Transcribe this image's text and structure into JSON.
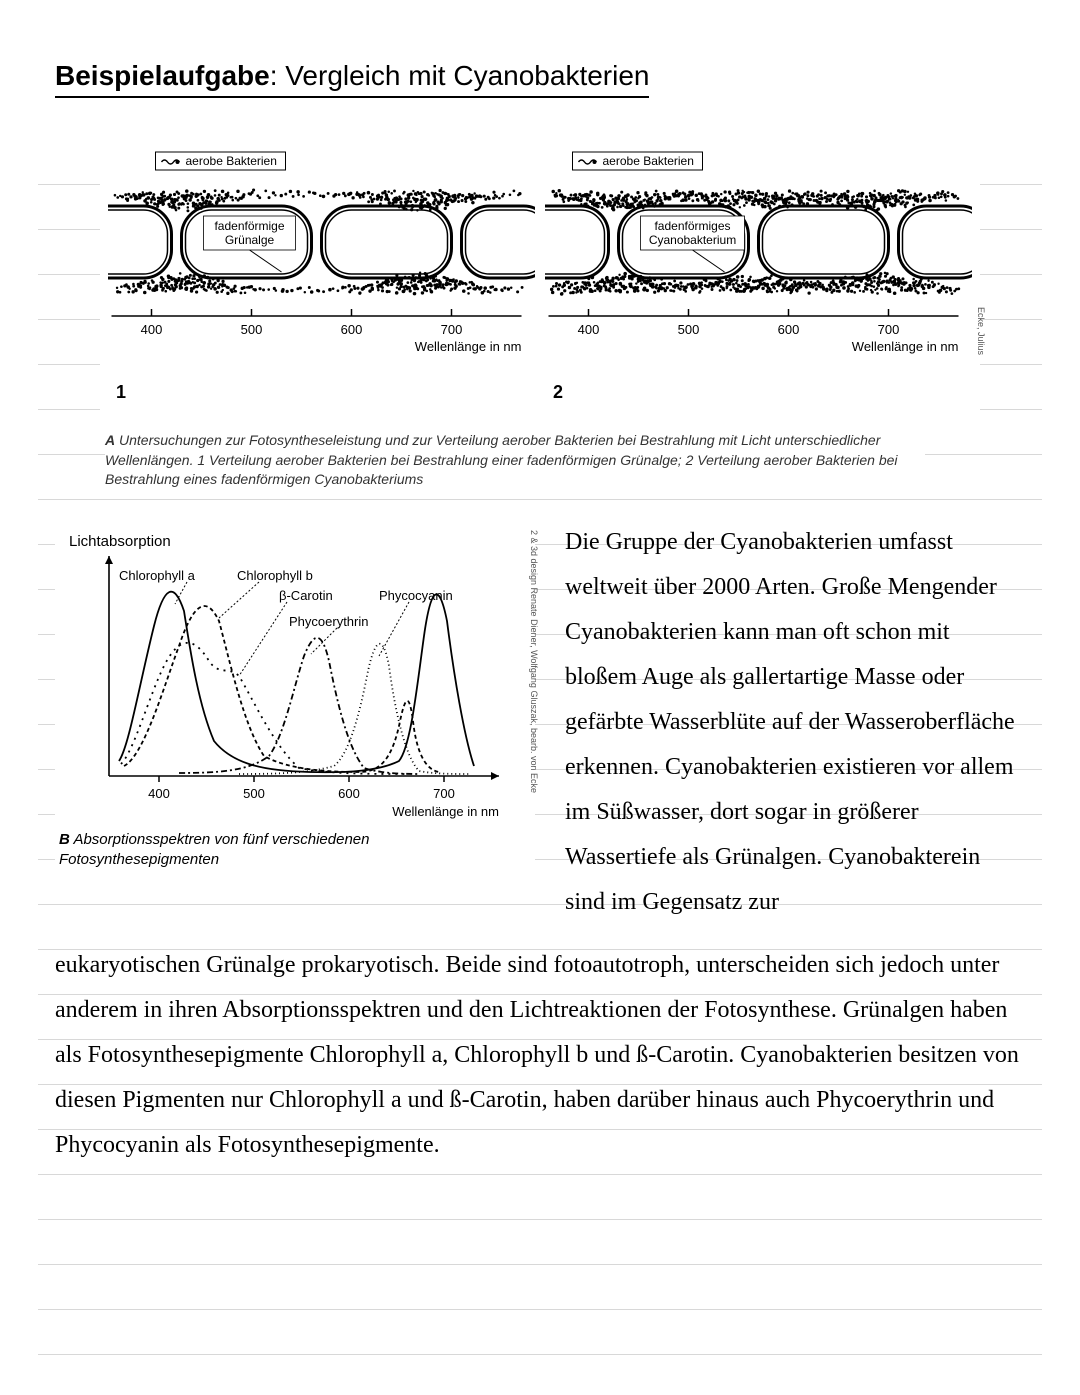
{
  "title_prefix": "Beispielaufgabe",
  "title_rest": ": Vergleich mit Cyanobakterien",
  "figA": {
    "legend_label": "aerobe Bakterien",
    "center_label_1_line1": "fadenförmige",
    "center_label_1_line2": "Grünalge",
    "center_label_2_line1": "fadenförmiges",
    "center_label_2_line2": "Cyanobakterium",
    "x_axis_label": "Wellenlänge in nm",
    "x_ticks": [
      "400",
      "500",
      "600",
      "700"
    ],
    "panel1_num": "1",
    "panel2_num": "2",
    "credit": "Ecke, Julius",
    "caption_label": "A",
    "caption_text": " Untersuchungen zur Fotosyntheseleistung und zur Verteilung aerober Bakterien bei Bestrahlung mit Licht unterschiedlicher Wellenlängen. 1 Verteilung aerober Bakterien bei Bestrahlung einer fadenförmigen Grünalge; 2 Verteilung aerober Bakterien bei Bestrahlung eines fadenförmigen Cyanobakteriums"
  },
  "figB": {
    "type": "line",
    "y_axis_label": "Lichtabsorption",
    "x_axis_label": "Wellenlänge in nm",
    "x_ticks": [
      "400",
      "500",
      "600",
      "700"
    ],
    "xlim": [
      350,
      750
    ],
    "stroke_color": "#000000",
    "background_color": "#ffffff",
    "line_width": 1.8,
    "label_fontsize": 13,
    "series": {
      "chlorophyll_a": {
        "label": "Chlorophyll a",
        "dash": "none",
        "label_xy": [
          410,
          35
        ]
      },
      "chlorophyll_b": {
        "label": "Chlorophyll b",
        "dash": "4 3",
        "label_xy": [
          540,
          35
        ]
      },
      "beta_carotin": {
        "label": "β-Carotin",
        "dash": "2 4",
        "label_xy": [
          560,
          55
        ]
      },
      "phycoerythrin": {
        "label": "Phycoerythrin",
        "dash": "6 3 2 3",
        "label_xy": [
          600,
          95
        ]
      },
      "phycocyanin": {
        "label": "Phycocyanin",
        "dash": "1 3",
        "label_xy": [
          650,
          55
        ]
      }
    },
    "credit": "2 & 3d design Renate Diener, Wolfgang Gluszak, bearb. von Ecke",
    "caption_label": "B",
    "caption_text": " Absorptionsspektren von fünf verschiedenen Fotosynthesepigmenten"
  },
  "side_paragraph": "Die Gruppe der Cyanobakterien umfasst weltweit über 2000 Arten. Große Mengender Cyanobakterien kann man oft schon mit bloßem Auge als gallertartige Masse oder gefärbte Wasserblüte auf der Wasseroberfläche erkennen. Cyanobakterien existieren vor allem im Süßwasser, dort sogar in größerer Wassertiefe als Grünalgen. Cyanobakterein sind im Gegensatz zur",
  "body_paragraph": "eukaryotischen Grünalge prokaryotisch. Beide sind fotoautotroph, unterscheiden sich jedoch unter anderem in ihren Absorptionsspektren und den Lichtreaktionen der Fotosynthese. Grünalgen haben als Fotosynthesepigmente Chlorophyll a, Chlorophyll b und ß-Carotin. Cyanobakterien besitzen von diesen Pigmenten nur Chlorophyll a und ß-Carotin, haben darüber hinaus auch Phycoerythrin und Phycocyanin als Fotosynthesepigmente.",
  "colors": {
    "text": "#000000",
    "rule_line": "#d8d8d8",
    "caption_text": "#333333"
  }
}
